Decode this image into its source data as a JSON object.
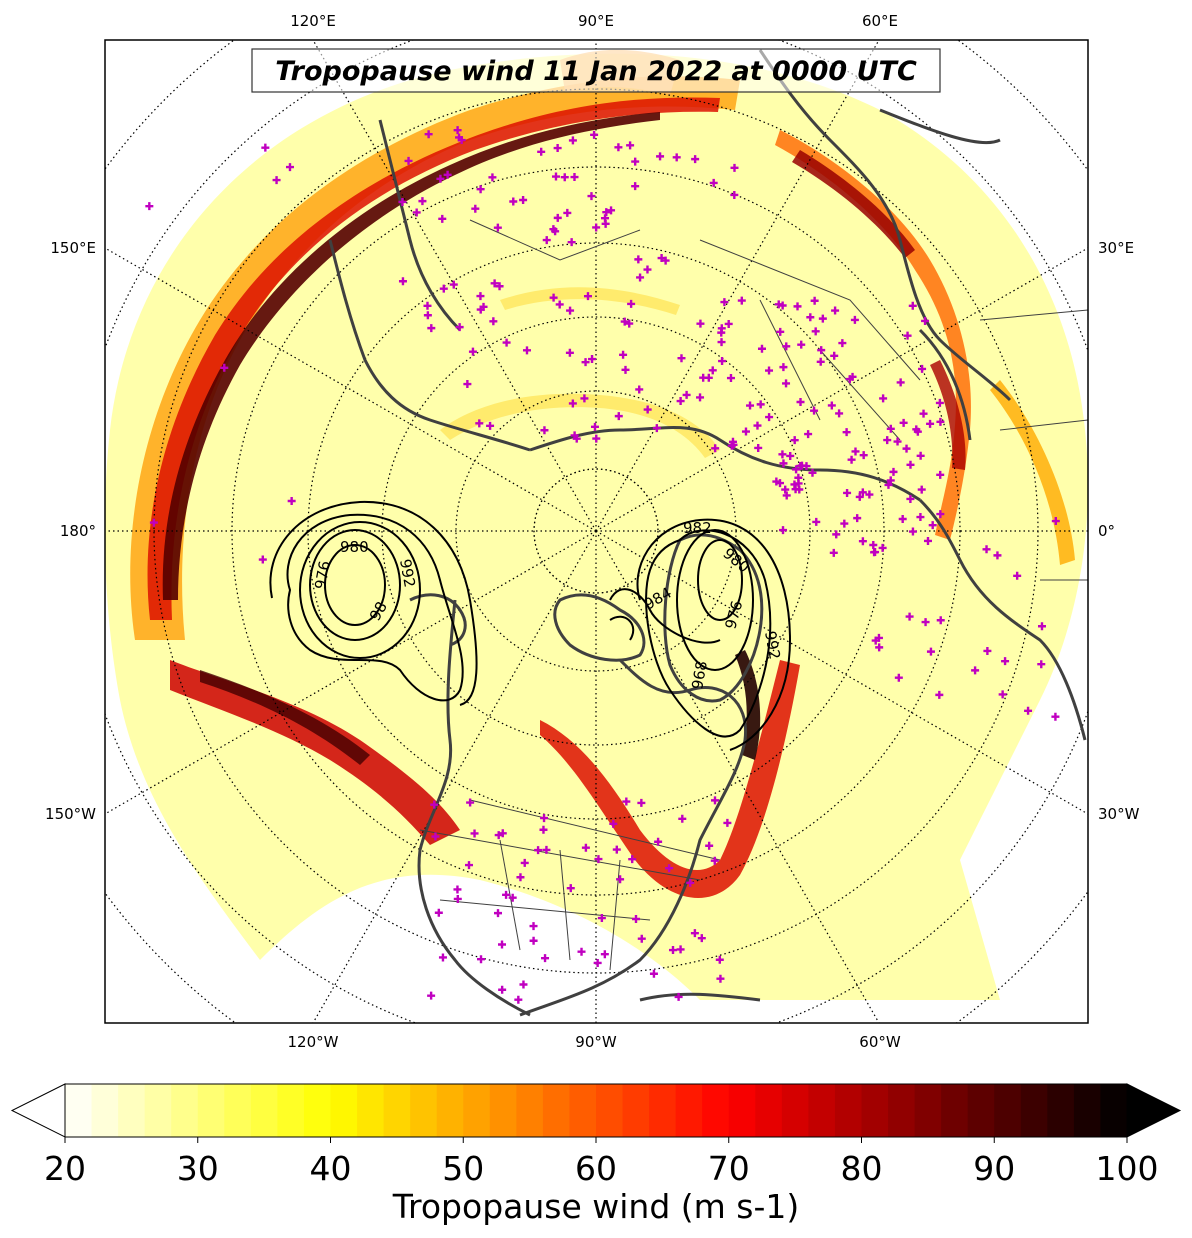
{
  "title": "Tropopause wind 11 Jan 2022 at 0000 UTC",
  "longitude_labels": {
    "top": [
      "120°E",
      "90°E",
      "60°E"
    ],
    "bottom": [
      "120°W",
      "90°W",
      "60°W"
    ],
    "left": [
      "150°E",
      "180°",
      "150°W"
    ],
    "right": [
      "30°E",
      "0°",
      "30°W"
    ]
  },
  "contour_labels": [
    "980",
    "976",
    "98",
    "992",
    "982",
    "980",
    "984",
    "976",
    "992",
    "968"
  ],
  "observation_marker_color": "#c000c0",
  "colorbar": {
    "label": "Tropopause wind (m s-1)",
    "ticks": [
      "20",
      "30",
      "40",
      "50",
      "60",
      "70",
      "80",
      "90",
      "100"
    ],
    "min": 20,
    "max": 100,
    "extend": "both",
    "colormap": "hot_r"
  }
}
